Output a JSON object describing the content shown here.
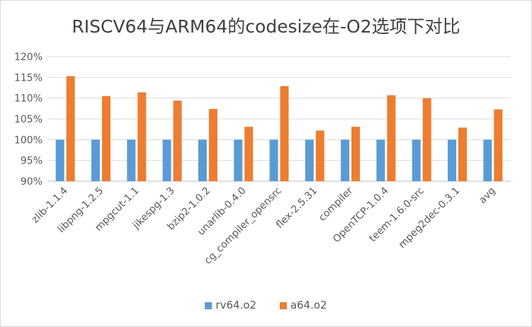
{
  "chart_data": {
    "type": "bar",
    "title": "RISCV64与ARM64的codesize在-O2选项下对比",
    "categories": [
      "zlib-1.1.4",
      "libpng-1.2.5",
      "mpgcut-1.1",
      "jikespg-1.3",
      "bzip2-1.0.2",
      "unarlib-0.4.0",
      "cg_compiler_opensrc",
      "flex-2.5.31",
      "compiler",
      "OpenTCP-1.0.4",
      "teem-1.6.0-src",
      "mpeg2dec-0.3.1",
      "avg"
    ],
    "series": [
      {
        "name": "rv64.o2",
        "color": "#5b9bd5",
        "values": [
          100,
          100,
          100,
          100,
          100,
          100,
          100,
          100,
          100,
          100,
          100,
          100,
          100
        ]
      },
      {
        "name": "a64.o2",
        "color": "#ed7d31",
        "values": [
          115.3,
          110.5,
          111.4,
          109.4,
          107.4,
          103.1,
          112.9,
          102.2,
          103.1,
          110.7,
          110.0,
          102.9,
          107.3
        ]
      }
    ],
    "yticks": [
      "90%",
      "95%",
      "100%",
      "105%",
      "110%",
      "115%",
      "120%"
    ],
    "ylim": [
      90,
      120
    ],
    "ytick_step": 5,
    "grid": true,
    "legend_position": "bottom",
    "xlabel": "",
    "ylabel": ""
  }
}
